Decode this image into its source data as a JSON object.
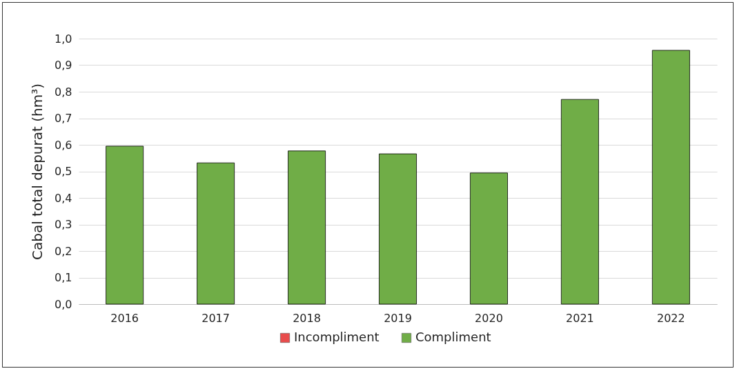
{
  "chart_data": {
    "type": "bar",
    "ylabel": "Cabal total depurat  (hm³)",
    "categories": [
      "2016",
      "2017",
      "2018",
      "2019",
      "2020",
      "2021",
      "2022"
    ],
    "series": [
      {
        "name": "Incompliment",
        "color": "#e84c4c",
        "values": [
          null,
          null,
          null,
          null,
          null,
          null,
          null
        ]
      },
      {
        "name": "Compliment",
        "color": "#70ad47",
        "values": [
          0.595,
          0.532,
          0.577,
          0.566,
          0.494,
          0.771,
          0.956
        ]
      }
    ],
    "ylim": [
      0,
      1
    ],
    "yticks": [
      {
        "value": 0,
        "label": "0,0"
      },
      {
        "value": 0.1,
        "label": "0,1"
      },
      {
        "value": 0.2,
        "label": "0,2"
      },
      {
        "value": 0.3,
        "label": "0,3"
      },
      {
        "value": 0.4,
        "label": "0,4"
      },
      {
        "value": 0.5,
        "label": "0,5"
      },
      {
        "value": 0.6,
        "label": "0,6"
      },
      {
        "value": 0.7,
        "label": "0,7"
      },
      {
        "value": 0.8,
        "label": "0,8"
      },
      {
        "value": 0.9,
        "label": "0,9"
      },
      {
        "value": 1,
        "label": "1,0"
      }
    ],
    "grid": "y",
    "legend": "bottom"
  }
}
